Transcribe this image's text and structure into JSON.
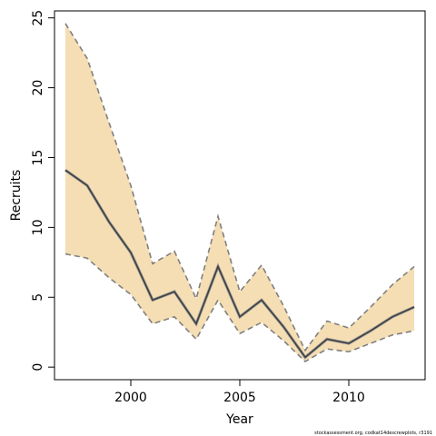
{
  "chart_data": {
    "type": "line",
    "title": "",
    "xlabel": "Year",
    "ylabel": "Recruits",
    "xlim": [
      1996.5,
      2013.5
    ],
    "ylim": [
      -0.9,
      25.5
    ],
    "x_ticks": [
      2000,
      2005,
      2010
    ],
    "y_ticks": [
      0,
      5,
      10,
      15,
      20,
      25
    ],
    "grid": false,
    "legend": "none",
    "x": [
      1997,
      1998,
      1999,
      2000,
      2001,
      2002,
      2003,
      2004,
      2005,
      2006,
      2007,
      2008,
      2009,
      2010,
      2011,
      2012,
      2013
    ],
    "series": [
      {
        "role": "estimate",
        "values": [
          14.1,
          13.0,
          10.4,
          8.2,
          4.8,
          5.4,
          3.1,
          7.2,
          3.6,
          4.8,
          2.9,
          0.7,
          2.0,
          1.7,
          2.6,
          3.6,
          4.3
        ]
      },
      {
        "role": "upper",
        "values": [
          24.6,
          22.1,
          17.5,
          13.0,
          7.4,
          8.3,
          4.9,
          10.8,
          5.4,
          7.3,
          4.4,
          1.2,
          3.3,
          2.8,
          4.3,
          5.9,
          7.2
        ]
      },
      {
        "role": "lower",
        "values": [
          8.1,
          7.8,
          6.4,
          5.2,
          3.1,
          3.6,
          2.0,
          4.8,
          2.4,
          3.2,
          1.9,
          0.4,
          1.3,
          1.1,
          1.7,
          2.3,
          2.6
        ]
      }
    ],
    "colors": {
      "band_fill": "#f5deb3",
      "bound_line": "#7f7f7f",
      "estimate_line": "#404040",
      "axis": "#000000"
    }
  },
  "footer": {
    "credit": "stockassessment.org, codkat14descrewplots, r3191"
  }
}
